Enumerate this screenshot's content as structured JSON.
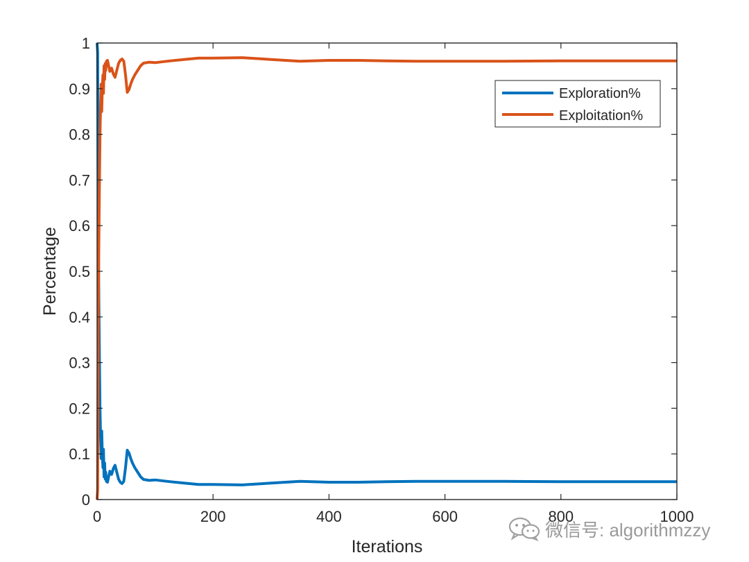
{
  "chart_data": {
    "type": "line",
    "xlabel": "Iterations",
    "ylabel": "Percentage",
    "xlim": [
      0,
      1000
    ],
    "ylim": [
      0,
      1
    ],
    "xticks": [
      "0",
      "200",
      "400",
      "600",
      "800",
      "1000"
    ],
    "yticks": [
      "0",
      "0.1",
      "0.2",
      "0.3",
      "0.4",
      "0.5",
      "0.6",
      "0.7",
      "0.8",
      "0.9",
      "1"
    ],
    "grid": false,
    "legend_position": "top-right",
    "series": [
      {
        "name": "Exploration%",
        "color": "#0072BD",
        "x": [
          0,
          1,
          2,
          3,
          4,
          5,
          6,
          7,
          8,
          9,
          10,
          11,
          12,
          13,
          14,
          15,
          16,
          18,
          20,
          22,
          25,
          28,
          31,
          34,
          37,
          40,
          43,
          46,
          49,
          52,
          55,
          58,
          61,
          65,
          70,
          75,
          80,
          90,
          100,
          120,
          150,
          175,
          200,
          250,
          300,
          350,
          400,
          450,
          500,
          550,
          600,
          700,
          800,
          900,
          1000
        ],
        "y": [
          1.0,
          0.98,
          0.6,
          0.44,
          0.32,
          0.2,
          0.14,
          0.09,
          0.15,
          0.1,
          0.07,
          0.11,
          0.05,
          0.08,
          0.045,
          0.06,
          0.04,
          0.038,
          0.05,
          0.062,
          0.055,
          0.068,
          0.075,
          0.06,
          0.045,
          0.038,
          0.035,
          0.04,
          0.07,
          0.108,
          0.102,
          0.09,
          0.08,
          0.07,
          0.06,
          0.05,
          0.044,
          0.042,
          0.043,
          0.04,
          0.036,
          0.033,
          0.033,
          0.032,
          0.036,
          0.04,
          0.038,
          0.038,
          0.039,
          0.04,
          0.04,
          0.04,
          0.039,
          0.039,
          0.039
        ]
      },
      {
        "name": "Exploitation%",
        "color": "#D95319",
        "x": [
          0,
          1,
          2,
          3,
          4,
          5,
          6,
          7,
          8,
          9,
          10,
          11,
          12,
          13,
          14,
          15,
          16,
          18,
          20,
          22,
          25,
          28,
          31,
          34,
          37,
          40,
          43,
          46,
          49,
          52,
          55,
          58,
          61,
          65,
          70,
          75,
          80,
          90,
          100,
          120,
          150,
          175,
          200,
          250,
          300,
          350,
          400,
          450,
          500,
          550,
          600,
          700,
          800,
          900,
          1000
        ],
        "y": [
          0.0,
          0.02,
          0.4,
          0.56,
          0.68,
          0.8,
          0.86,
          0.91,
          0.85,
          0.9,
          0.93,
          0.89,
          0.95,
          0.92,
          0.955,
          0.94,
          0.96,
          0.962,
          0.95,
          0.938,
          0.945,
          0.932,
          0.925,
          0.94,
          0.955,
          0.962,
          0.965,
          0.96,
          0.93,
          0.892,
          0.898,
          0.91,
          0.92,
          0.93,
          0.94,
          0.95,
          0.956,
          0.958,
          0.957,
          0.96,
          0.964,
          0.967,
          0.967,
          0.968,
          0.964,
          0.96,
          0.962,
          0.962,
          0.961,
          0.96,
          0.96,
          0.96,
          0.961,
          0.961,
          0.961
        ]
      }
    ]
  },
  "watermark": {
    "text": "微信号: algorithmzzy",
    "icon": "wechat-icon"
  }
}
